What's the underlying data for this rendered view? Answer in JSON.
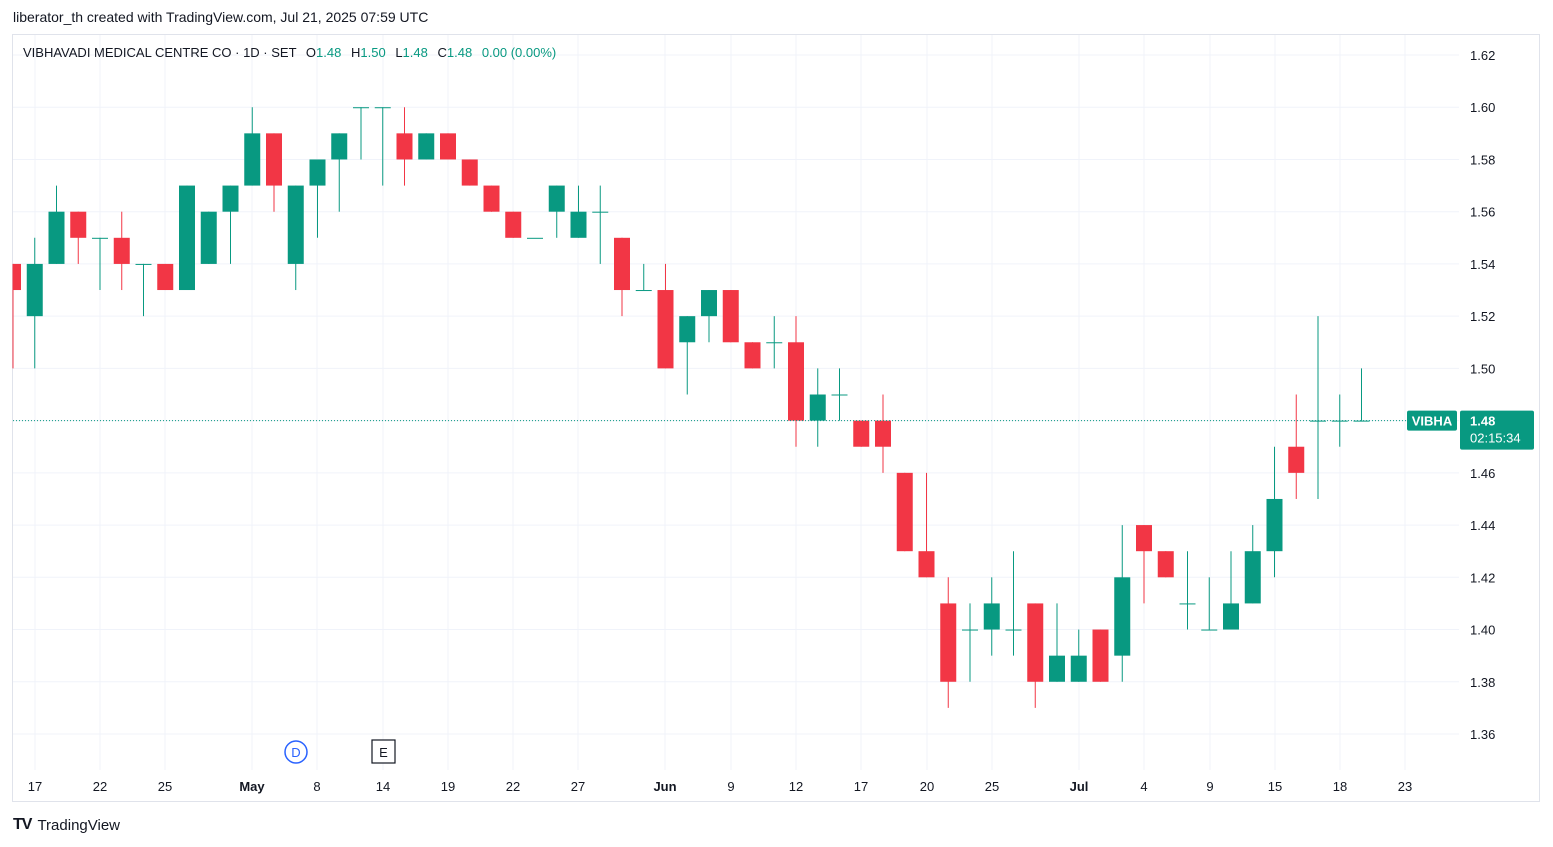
{
  "caption": "liberator_th created with TradingView.com, Jul 21, 2025 07:59 UTC",
  "legend": {
    "symbol": "VIBHAVADI MEDICAL CENTRE CO · 1D · SET",
    "o_label": "O",
    "o_value": "1.48",
    "h_label": "H",
    "h_value": "1.50",
    "l_label": "L",
    "l_value": "1.48",
    "c_label": "C",
    "c_value": "1.48",
    "change": "0.00 (0.00%)"
  },
  "price_tag": {
    "ticker": "VIBHA",
    "price": "1.48",
    "countdown": "02:15:34"
  },
  "markers": [
    {
      "letter": "D",
      "kind": "dividend"
    },
    {
      "letter": "E",
      "kind": "earnings"
    }
  ],
  "brand": {
    "logo": "TV",
    "name": "TradingView"
  },
  "colors": {
    "up": "#089981",
    "down": "#f23645",
    "grid": "#f0f3fa",
    "price_line": "#089981",
    "text": "#131722",
    "marker_d": "#2962ff"
  },
  "chart_data": {
    "type": "candlestick",
    "title": "VIBHAVADI MEDICAL CENTRE CO · 1D · SET",
    "ylim": [
      1.35,
      1.63
    ],
    "y_ticks": [
      "1.36",
      "1.38",
      "1.40",
      "1.42",
      "1.44",
      "1.46",
      "1.48",
      "1.50",
      "1.52",
      "1.54",
      "1.56",
      "1.58",
      "1.60",
      "1.62"
    ],
    "x_ticks": [
      {
        "label": "17",
        "month": false
      },
      {
        "label": "22",
        "month": false
      },
      {
        "label": "25",
        "month": false
      },
      {
        "label": "May",
        "month": true
      },
      {
        "label": "8",
        "month": false
      },
      {
        "label": "14",
        "month": false
      },
      {
        "label": "19",
        "month": false
      },
      {
        "label": "22",
        "month": false
      },
      {
        "label": "27",
        "month": false
      },
      {
        "label": "Jun",
        "month": true
      },
      {
        "label": "9",
        "month": false
      },
      {
        "label": "12",
        "month": false
      },
      {
        "label": "17",
        "month": false
      },
      {
        "label": "20",
        "month": false
      },
      {
        "label": "25",
        "month": false
      },
      {
        "label": "Jul",
        "month": true
      },
      {
        "label": "4",
        "month": false
      },
      {
        "label": "9",
        "month": false
      },
      {
        "label": "15",
        "month": false
      },
      {
        "label": "18",
        "month": false
      },
      {
        "label": "23",
        "month": false
      }
    ],
    "grid": true,
    "last_price": 1.48,
    "candles": [
      {
        "o": 1.54,
        "h": 1.54,
        "l": 1.5,
        "c": 1.53
      },
      {
        "o": 1.52,
        "h": 1.55,
        "l": 1.5,
        "c": 1.54
      },
      {
        "o": 1.54,
        "h": 1.57,
        "l": 1.54,
        "c": 1.56
      },
      {
        "o": 1.56,
        "h": 1.56,
        "l": 1.54,
        "c": 1.55
      },
      {
        "o": 1.55,
        "h": 1.55,
        "l": 1.53,
        "c": 1.55
      },
      {
        "o": 1.55,
        "h": 1.56,
        "l": 1.53,
        "c": 1.54
      },
      {
        "o": 1.54,
        "h": 1.54,
        "l": 1.52,
        "c": 1.54
      },
      {
        "o": 1.54,
        "h": 1.54,
        "l": 1.53,
        "c": 1.53
      },
      {
        "o": 1.53,
        "h": 1.57,
        "l": 1.53,
        "c": 1.57
      },
      {
        "o": 1.54,
        "h": 1.56,
        "l": 1.54,
        "c": 1.56
      },
      {
        "o": 1.56,
        "h": 1.57,
        "l": 1.54,
        "c": 1.57
      },
      {
        "o": 1.57,
        "h": 1.6,
        "l": 1.57,
        "c": 1.59
      },
      {
        "o": 1.59,
        "h": 1.59,
        "l": 1.56,
        "c": 1.57
      },
      {
        "o": 1.54,
        "h": 1.57,
        "l": 1.53,
        "c": 1.57
      },
      {
        "o": 1.57,
        "h": 1.58,
        "l": 1.55,
        "c": 1.58
      },
      {
        "o": 1.58,
        "h": 1.59,
        "l": 1.56,
        "c": 1.59
      },
      {
        "o": 1.6,
        "h": 1.6,
        "l": 1.58,
        "c": 1.6
      },
      {
        "o": 1.6,
        "h": 1.6,
        "l": 1.57,
        "c": 1.6
      },
      {
        "o": 1.59,
        "h": 1.6,
        "l": 1.57,
        "c": 1.58
      },
      {
        "o": 1.58,
        "h": 1.59,
        "l": 1.58,
        "c": 1.59
      },
      {
        "o": 1.59,
        "h": 1.59,
        "l": 1.58,
        "c": 1.58
      },
      {
        "o": 1.58,
        "h": 1.58,
        "l": 1.57,
        "c": 1.57
      },
      {
        "o": 1.57,
        "h": 1.57,
        "l": 1.56,
        "c": 1.56
      },
      {
        "o": 1.56,
        "h": 1.56,
        "l": 1.55,
        "c": 1.55
      },
      {
        "o": 1.55,
        "h": 1.55,
        "l": 1.55,
        "c": 1.55
      },
      {
        "o": 1.56,
        "h": 1.57,
        "l": 1.55,
        "c": 1.57
      },
      {
        "o": 1.55,
        "h": 1.57,
        "l": 1.55,
        "c": 1.56
      },
      {
        "o": 1.56,
        "h": 1.57,
        "l": 1.54,
        "c": 1.56
      },
      {
        "o": 1.55,
        "h": 1.55,
        "l": 1.52,
        "c": 1.53
      },
      {
        "o": 1.53,
        "h": 1.54,
        "l": 1.53,
        "c": 1.53
      },
      {
        "o": 1.53,
        "h": 1.54,
        "l": 1.5,
        "c": 1.5
      },
      {
        "o": 1.51,
        "h": 1.52,
        "l": 1.49,
        "c": 1.52
      },
      {
        "o": 1.52,
        "h": 1.53,
        "l": 1.51,
        "c": 1.53
      },
      {
        "o": 1.53,
        "h": 1.53,
        "l": 1.51,
        "c": 1.51
      },
      {
        "o": 1.51,
        "h": 1.51,
        "l": 1.5,
        "c": 1.5
      },
      {
        "o": 1.51,
        "h": 1.52,
        "l": 1.5,
        "c": 1.51
      },
      {
        "o": 1.51,
        "h": 1.52,
        "l": 1.47,
        "c": 1.48
      },
      {
        "o": 1.48,
        "h": 1.5,
        "l": 1.47,
        "c": 1.49
      },
      {
        "o": 1.49,
        "h": 1.5,
        "l": 1.48,
        "c": 1.49
      },
      {
        "o": 1.48,
        "h": 1.48,
        "l": 1.47,
        "c": 1.47
      },
      {
        "o": 1.48,
        "h": 1.49,
        "l": 1.46,
        "c": 1.47
      },
      {
        "o": 1.46,
        "h": 1.46,
        "l": 1.43,
        "c": 1.43
      },
      {
        "o": 1.43,
        "h": 1.46,
        "l": 1.42,
        "c": 1.42
      },
      {
        "o": 1.41,
        "h": 1.42,
        "l": 1.37,
        "c": 1.38
      },
      {
        "o": 1.4,
        "h": 1.41,
        "l": 1.38,
        "c": 1.4
      },
      {
        "o": 1.4,
        "h": 1.42,
        "l": 1.39,
        "c": 1.41
      },
      {
        "o": 1.4,
        "h": 1.43,
        "l": 1.39,
        "c": 1.4
      },
      {
        "o": 1.41,
        "h": 1.41,
        "l": 1.37,
        "c": 1.38
      },
      {
        "o": 1.38,
        "h": 1.41,
        "l": 1.38,
        "c": 1.39
      },
      {
        "o": 1.38,
        "h": 1.4,
        "l": 1.38,
        "c": 1.39
      },
      {
        "o": 1.4,
        "h": 1.4,
        "l": 1.38,
        "c": 1.38
      },
      {
        "o": 1.39,
        "h": 1.44,
        "l": 1.38,
        "c": 1.42
      },
      {
        "o": 1.44,
        "h": 1.44,
        "l": 1.41,
        "c": 1.43
      },
      {
        "o": 1.43,
        "h": 1.43,
        "l": 1.42,
        "c": 1.42
      },
      {
        "o": 1.41,
        "h": 1.43,
        "l": 1.4,
        "c": 1.41
      },
      {
        "o": 1.4,
        "h": 1.42,
        "l": 1.4,
        "c": 1.4
      },
      {
        "o": 1.4,
        "h": 1.43,
        "l": 1.4,
        "c": 1.41
      },
      {
        "o": 1.41,
        "h": 1.44,
        "l": 1.41,
        "c": 1.43
      },
      {
        "o": 1.43,
        "h": 1.47,
        "l": 1.42,
        "c": 1.45
      },
      {
        "o": 1.47,
        "h": 1.49,
        "l": 1.45,
        "c": 1.46
      },
      {
        "o": 1.48,
        "h": 1.52,
        "l": 1.45,
        "c": 1.48
      },
      {
        "o": 1.48,
        "h": 1.49,
        "l": 1.47,
        "c": 1.48
      },
      {
        "o": 1.48,
        "h": 1.5,
        "l": 1.48,
        "c": 1.48
      }
    ]
  }
}
